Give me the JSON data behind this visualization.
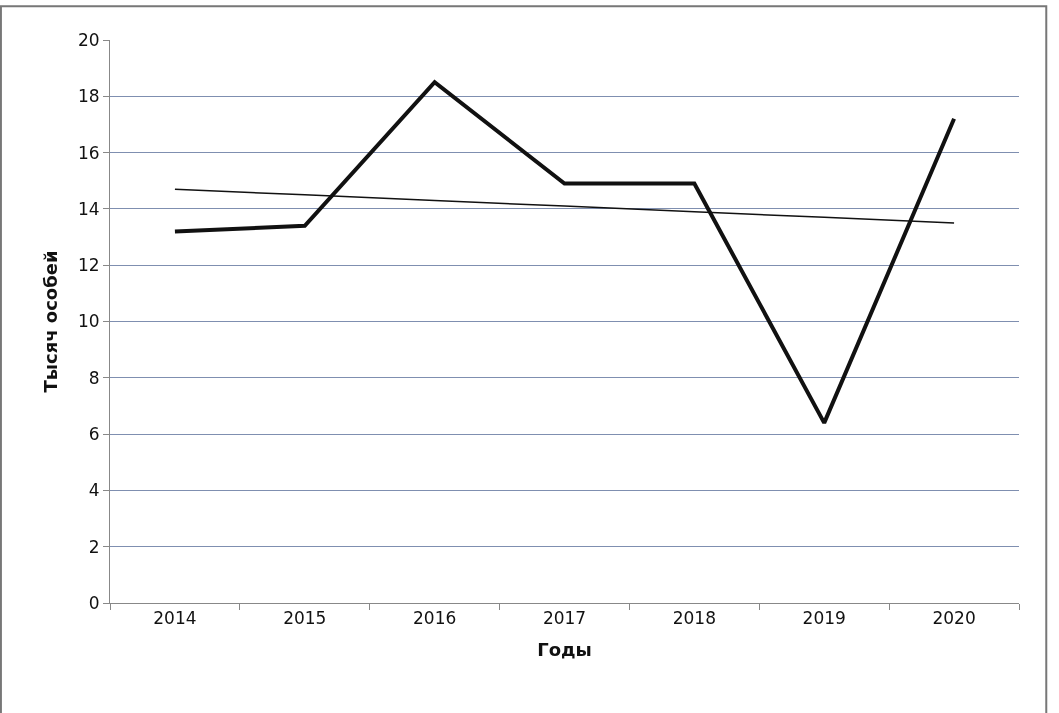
{
  "chart_data": {
    "type": "line",
    "xlabel": "Годы",
    "ylabel": "Тысяч особей",
    "categories": [
      "2014",
      "2015",
      "2016",
      "2017",
      "2018",
      "2019",
      "2020"
    ],
    "series": [
      {
        "color": "#111111",
        "values": [
          13.2,
          13.4,
          18.5,
          14.9,
          14.9,
          6.4,
          17.2
        ]
      },
      {
        "type": "line",
        "color": "#111111",
        "values": [
          14.7,
          14.5,
          14.3,
          14.1,
          13.9,
          13.7,
          13.5
        ],
        "line_style": "solid"
      }
    ],
    "ylim": [
      0,
      20
    ],
    "yticks": [
      0,
      2,
      4,
      6,
      8,
      10,
      12,
      14,
      16,
      18,
      20
    ],
    "grid": "y",
    "marker": "none"
  }
}
